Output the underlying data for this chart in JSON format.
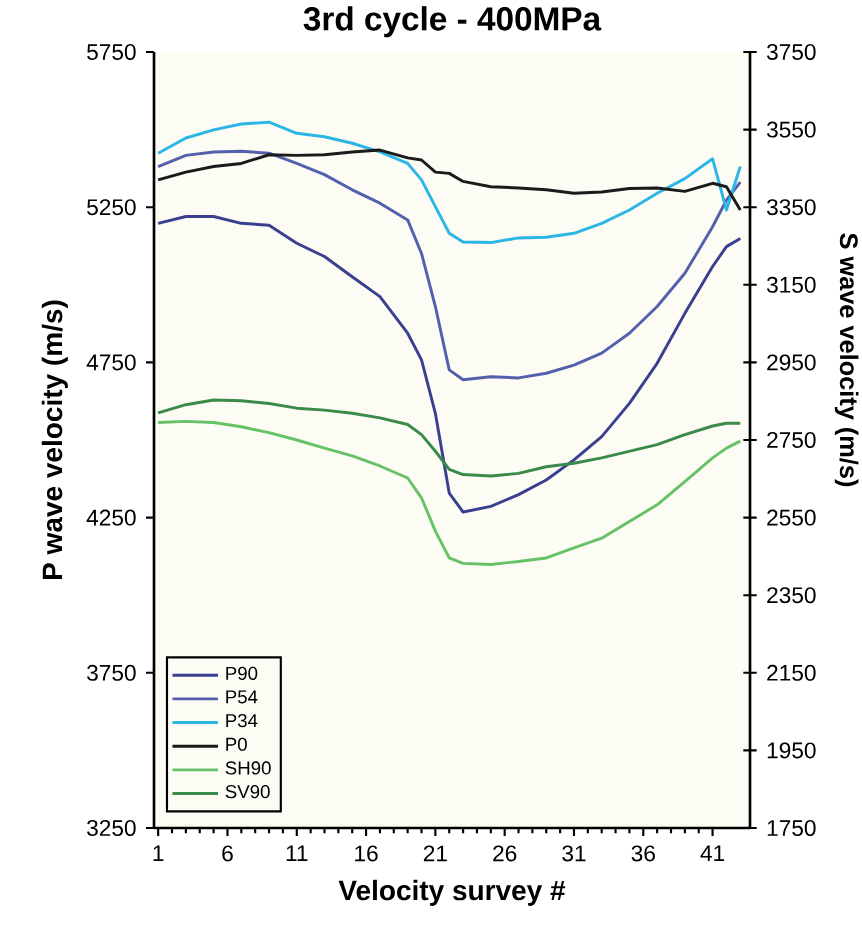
{
  "chart_data": {
    "type": "line",
    "title": "3rd cycle - 400MPa",
    "xlabel": "Velocity survey #",
    "ylabel": "P wave velocity (m/s)",
    "y2label": "S wave velocity (m/s)",
    "x": [
      1,
      3,
      5,
      7,
      9,
      11,
      13,
      15,
      17,
      19,
      20,
      21,
      22,
      23,
      25,
      27,
      29,
      31,
      33,
      35,
      37,
      39,
      41,
      42,
      43
    ],
    "series": [
      {
        "name": "P90",
        "color": "#3a3f8f",
        "values": [
          5198,
          5220,
          5220,
          5198,
          5192,
          5134,
          5091,
          5026,
          4962,
          4844,
          4758,
          4586,
          4329,
          4268,
          4286,
          4324,
          4371,
          4436,
          4511,
          4618,
          4747,
          4908,
          5059,
          5123,
          5149
        ]
      },
      {
        "name": "P54",
        "color": "#5560ad",
        "values": [
          5381,
          5417,
          5428,
          5430,
          5424,
          5391,
          5355,
          5306,
          5263,
          5209,
          5101,
          4930,
          4726,
          4694,
          4704,
          4700,
          4715,
          4741,
          4780,
          4844,
          4930,
          5037,
          5187,
          5273,
          5331
        ]
      },
      {
        "name": "P34",
        "color": "#2bb6e6",
        "values": [
          5424,
          5473,
          5499,
          5518,
          5524,
          5488,
          5477,
          5456,
          5428,
          5391,
          5338,
          5252,
          5166,
          5138,
          5136,
          5151,
          5153,
          5166,
          5198,
          5241,
          5295,
          5342,
          5406,
          5241,
          5381
        ]
      },
      {
        "name": "P0",
        "color": "#1a1a1a",
        "values": [
          5338,
          5363,
          5381,
          5391,
          5419,
          5417,
          5419,
          5428,
          5434,
          5409,
          5402,
          5363,
          5359,
          5333,
          5316,
          5312,
          5306,
          5295,
          5299,
          5310,
          5312,
          5301,
          5327,
          5316,
          5241
        ]
      },
      {
        "name": "SH90",
        "color": "#66c266",
        "axis": "y2",
        "values": [
          2795,
          2798,
          2795,
          2784,
          2769,
          2750,
          2729,
          2709,
          2683,
          2652,
          2601,
          2515,
          2446,
          2432,
          2429,
          2437,
          2446,
          2472,
          2497,
          2540,
          2583,
          2643,
          2704,
          2729,
          2747
        ]
      },
      {
        "name": "SV90",
        "color": "#3a8a4a",
        "axis": "y2",
        "values": [
          2820,
          2841,
          2853,
          2851,
          2844,
          2832,
          2827,
          2819,
          2807,
          2790,
          2764,
          2721,
          2674,
          2661,
          2657,
          2664,
          2681,
          2690,
          2704,
          2721,
          2738,
          2764,
          2786,
          2793,
          2793
        ]
      }
    ],
    "xlim": [
      0.7,
      43.7
    ],
    "xticks": [
      1,
      6,
      11,
      16,
      21,
      26,
      31,
      36,
      41
    ],
    "ylim": [
      3250,
      5750
    ],
    "yticks": [
      3250,
      3750,
      4250,
      4750,
      5250,
      5750
    ],
    "y2lim": [
      1750,
      3750
    ],
    "y2ticks": [
      1750,
      1950,
      2150,
      2350,
      2550,
      2750,
      2950,
      3150,
      3350,
      3550,
      3750
    ],
    "legend": "bottom left",
    "marker": "none"
  }
}
